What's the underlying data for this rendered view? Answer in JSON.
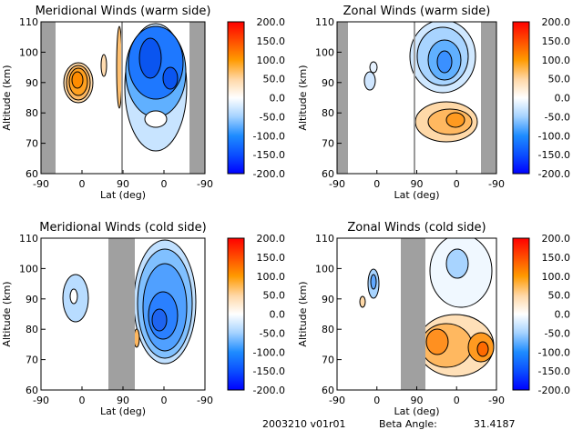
{
  "chart_data": [
    {
      "type": "heatmap",
      "title": "Meridional Winds (warm side)",
      "xlabel": "Lat (deg)",
      "ylabel": "Altitude (km)",
      "xticks": [
        "-90",
        "0",
        "90",
        "0",
        "-90"
      ],
      "yticks": [
        "60",
        "70",
        "80",
        "90",
        "100",
        "110"
      ],
      "ylim": [
        60,
        110
      ],
      "colorbar_ticks": [
        "200.0",
        "150.0",
        "100.0",
        "50.0",
        "0.0",
        "-50.0",
        "-100.0",
        "-150.0",
        "-200.0"
      ],
      "clim": [
        -200,
        200
      ]
    },
    {
      "type": "heatmap",
      "title": "Zonal Winds (warm side)",
      "xlabel": "Lat (deg)",
      "ylabel": "Altitude (km)",
      "xticks": [
        "-90",
        "0",
        "90",
        "0",
        "-90"
      ],
      "yticks": [
        "60",
        "70",
        "80",
        "90",
        "100",
        "110"
      ],
      "ylim": [
        60,
        110
      ],
      "colorbar_ticks": [
        "200.0",
        "150.0",
        "100.0",
        "50.0",
        "0.0",
        "-50.0",
        "-100.0",
        "-150.0",
        "-200.0"
      ],
      "clim": [
        -200,
        200
      ]
    },
    {
      "type": "heatmap",
      "title": "Meridional Winds (cold side)",
      "xlabel": "Lat (deg)",
      "ylabel": "Altitude (km)",
      "xticks": [
        "-90",
        "0",
        "90",
        "0",
        "-90"
      ],
      "yticks": [
        "60",
        "70",
        "80",
        "90",
        "100",
        "110"
      ],
      "ylim": [
        60,
        110
      ],
      "colorbar_ticks": [
        "200.0",
        "150.0",
        "100.0",
        "50.0",
        "0.0",
        "-50.0",
        "-100.0",
        "-150.0",
        "-200.0"
      ],
      "clim": [
        -200,
        200
      ]
    },
    {
      "type": "heatmap",
      "title": "Zonal Winds (cold side)",
      "xlabel": "Lat (deg)",
      "ylabel": "Altitude (km)",
      "xticks": [
        "-90",
        "0",
        "90",
        "0",
        "-90"
      ],
      "yticks": [
        "60",
        "70",
        "80",
        "90",
        "100",
        "110"
      ],
      "ylim": [
        60,
        110
      ],
      "colorbar_ticks": [
        "200.0",
        "150.0",
        "100.0",
        "50.0",
        "0.0",
        "-50.0",
        "-100.0",
        "-150.0",
        "-200.0"
      ],
      "clim": [
        -200,
        200
      ]
    }
  ],
  "footer": {
    "date_version": "2003210 v01r01",
    "beta_label": "Beta Angle:",
    "beta_value": "31.4187"
  },
  "colors": {
    "gray_mask": "#a0a0a0",
    "max": "#ff0000",
    "orange": "#ff9a00",
    "zero": "#ffffff",
    "light_blue": "#9fd0ff",
    "mid_blue": "#1e8cff",
    "min": "#0000ff"
  }
}
